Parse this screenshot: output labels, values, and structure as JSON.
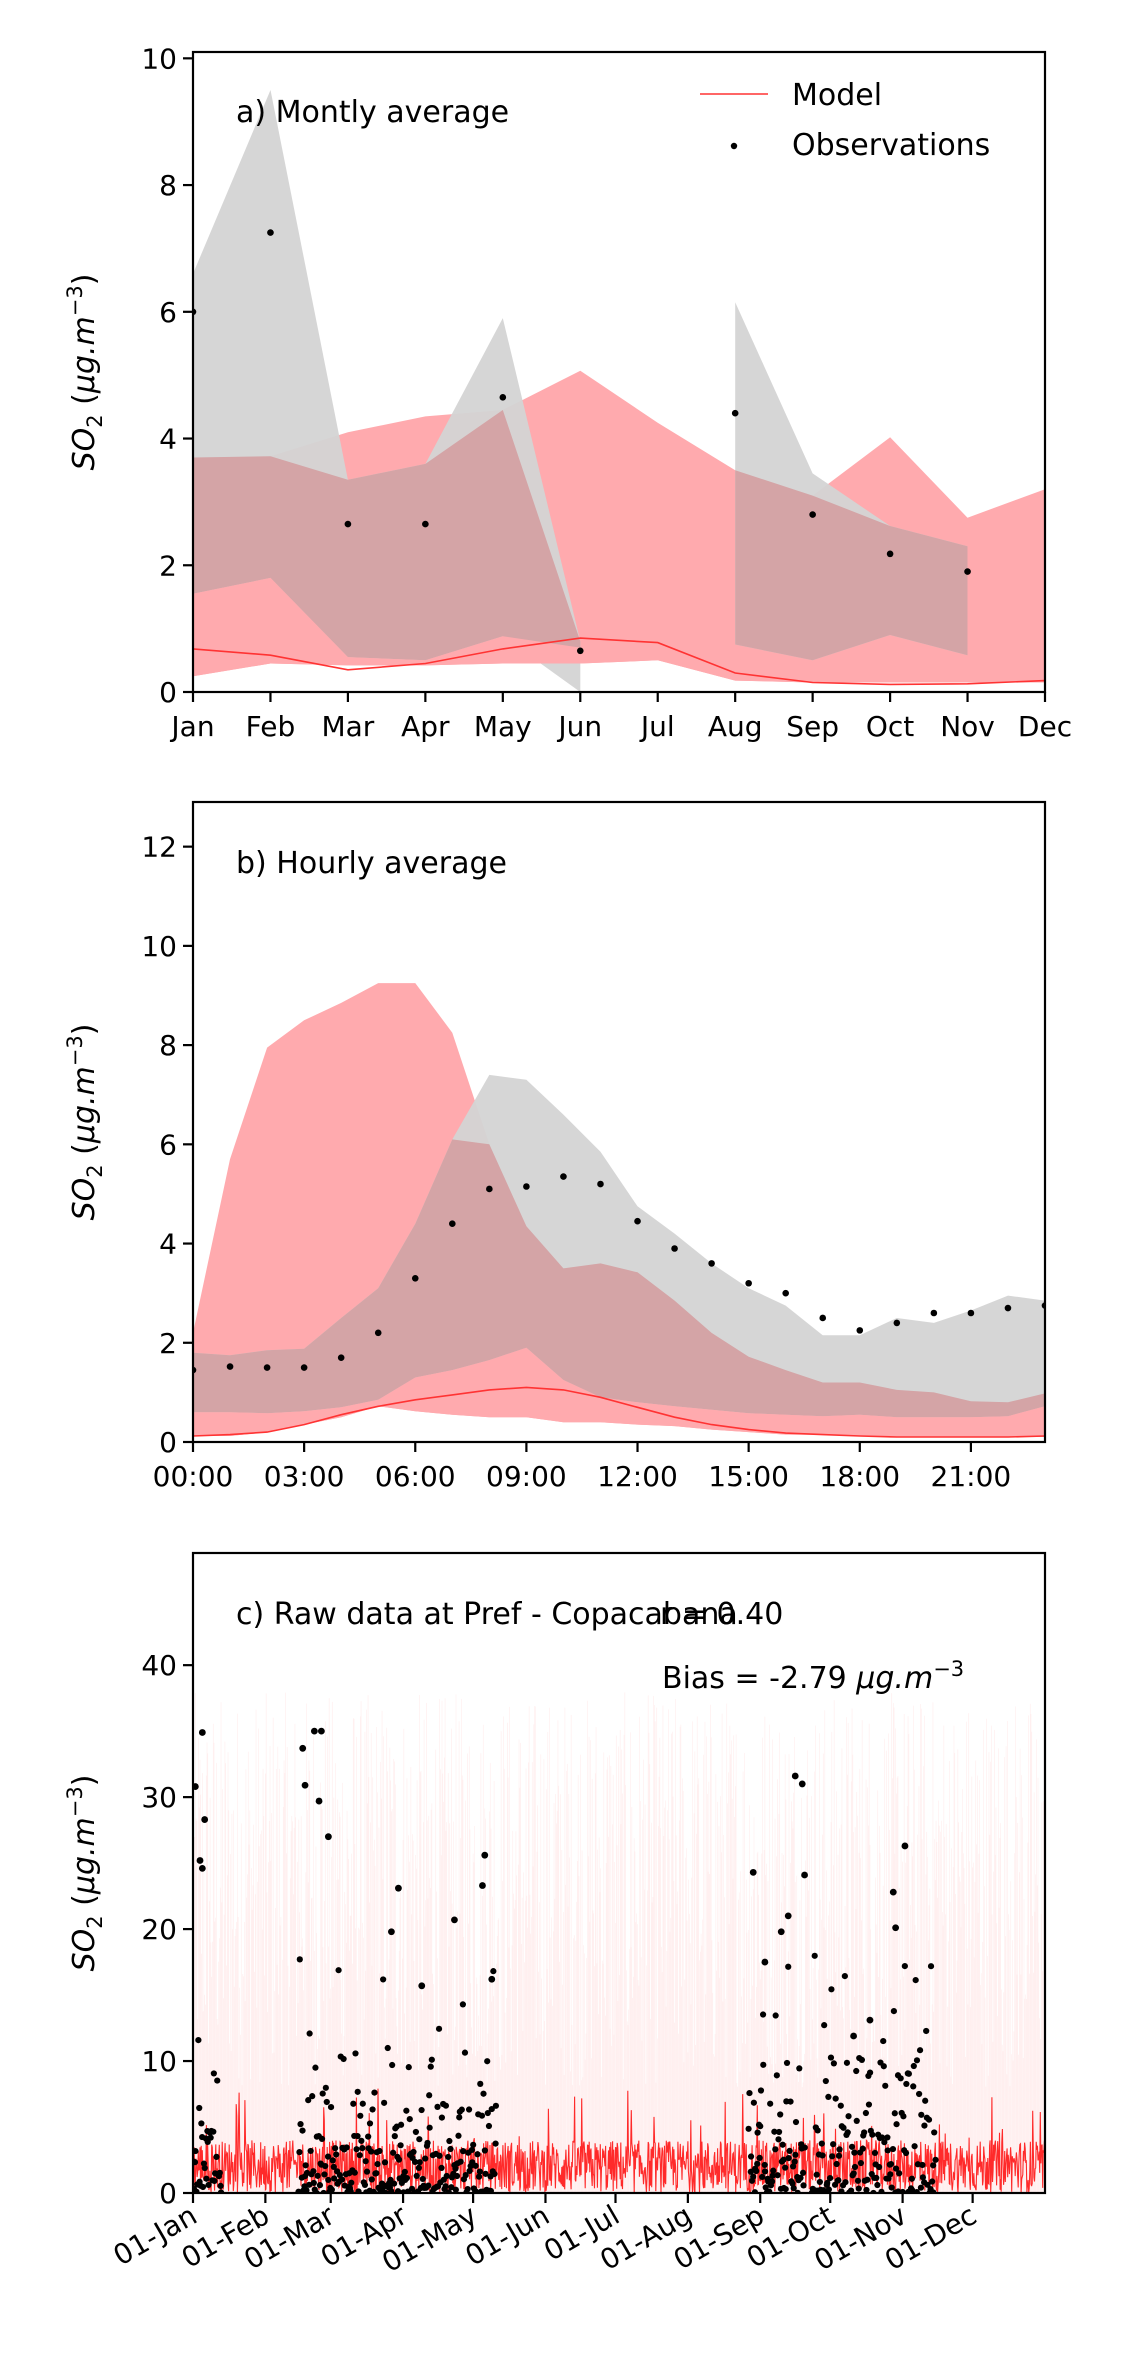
{
  "chart_data": [
    {
      "type": "line",
      "panel_label": "a) Montly average",
      "ylabel": "SO2 (μg.m−3)",
      "ylim": [
        0,
        10.1
      ],
      "yticks": [
        0,
        2,
        4,
        6,
        8,
        10
      ],
      "x_tick_labels": [
        "Jan",
        "Feb",
        "Mar",
        "Apr",
        "May",
        "Jun",
        "Jul",
        "Aug",
        "Sep",
        "Oct",
        "Nov",
        "Dec"
      ],
      "xlim": [
        0,
        11
      ],
      "legend": {
        "position": "top-right",
        "entries": [
          {
            "label": "Model",
            "kind": "line",
            "color": "#ff3333"
          },
          {
            "label": "Observations",
            "kind": "dot",
            "color": "#000000"
          }
        ]
      },
      "model_band_outer": {
        "x": [
          0,
          1,
          2,
          3,
          4,
          5,
          6,
          7,
          8,
          9,
          10,
          11
        ],
        "lower": [
          0.25,
          0.45,
          0.42,
          0.42,
          0.45,
          0.45,
          0.5,
          0.18,
          0.15,
          0.15,
          0.15,
          0.15
        ],
        "upper": [
          3.7,
          3.72,
          4.1,
          4.35,
          4.45,
          5.07,
          4.25,
          3.5,
          3.1,
          4.02,
          2.75,
          3.2
        ]
      },
      "model_band_inner": {
        "x": [
          0,
          1,
          2,
          3,
          4,
          5,
          6,
          7,
          8,
          9,
          10,
          11
        ],
        "lower": [
          0.25,
          0.45,
          0.42,
          0.42,
          0.45,
          0.45,
          0.5,
          0.18,
          0.15,
          0.15,
          0.15,
          0.15
        ],
        "upper": [
          1.55,
          1.8,
          0.55,
          0.5,
          0.88,
          0.7,
          0.65,
          0.35,
          0.25,
          0.25,
          0.25,
          0.35
        ]
      },
      "obs_band_segments": [
        {
          "x": [
            0,
            1,
            2,
            3,
            4,
            5
          ],
          "lower": [
            1.55,
            1.8,
            0.55,
            0.5,
            0.88,
            0.0
          ],
          "upper": [
            6.6,
            9.5,
            3.35,
            3.6,
            5.9,
            0.8
          ]
        },
        {
          "x": [
            7,
            8,
            9,
            10
          ],
          "lower": [
            0.75,
            0.5,
            0.9,
            0.58
          ],
          "upper": [
            6.15,
            3.45,
            2.62,
            2.3
          ]
        }
      ],
      "model_line": {
        "x": [
          0,
          1,
          2,
          3,
          4,
          5,
          6,
          7,
          8,
          9,
          10,
          11
        ],
        "y": [
          0.68,
          0.58,
          0.35,
          0.45,
          0.68,
          0.85,
          0.78,
          0.3,
          0.15,
          0.12,
          0.13,
          0.18
        ]
      },
      "observations": {
        "x": [
          0,
          1,
          2,
          3,
          4,
          5,
          7,
          8,
          9,
          10
        ],
        "y": [
          6.0,
          7.25,
          2.65,
          2.65,
          4.65,
          0.65,
          4.4,
          2.8,
          2.18,
          1.9
        ]
      },
      "colors": {
        "model": "#ff3333",
        "model_band": "#ffaaae",
        "obs_band": "#d4d4d4",
        "overlap": "#d4a4a6"
      }
    },
    {
      "type": "line",
      "panel_label": "b) Hourly average",
      "ylabel": "SO2 (μg.m−3)",
      "ylim": [
        0,
        12.9
      ],
      "yticks": [
        0,
        2,
        4,
        6,
        8,
        10,
        12
      ],
      "x_tick_labels": [
        "00:00",
        "03:00",
        "06:00",
        "09:00",
        "12:00",
        "15:00",
        "18:00",
        "21:00"
      ],
      "x_tick_hours": [
        0,
        3,
        6,
        9,
        12,
        15,
        18,
        21
      ],
      "xlim": [
        0,
        23
      ],
      "model_band_outer": {
        "x": [
          0,
          1,
          2,
          3,
          4,
          5,
          6,
          7,
          8,
          9,
          10,
          11,
          12,
          13,
          14,
          15,
          16,
          17,
          18,
          19,
          20,
          21,
          22,
          23
        ],
        "lower": [
          0.12,
          0.12,
          0.2,
          0.35,
          0.5,
          0.72,
          0.62,
          0.55,
          0.5,
          0.5,
          0.4,
          0.4,
          0.35,
          0.32,
          0.25,
          0.2,
          0.15,
          0.15,
          0.12,
          0.1,
          0.1,
          0.1,
          0.1,
          0.1
        ],
        "upper": [
          2.2,
          5.7,
          7.95,
          8.5,
          8.85,
          9.25,
          9.25,
          8.25,
          6.0,
          4.35,
          3.5,
          3.6,
          3.42,
          2.85,
          2.2,
          1.72,
          1.45,
          1.2,
          1.2,
          1.05,
          1.0,
          0.82,
          0.8,
          0.98
        ]
      },
      "model_band_inner": {
        "x": [
          0,
          1,
          2,
          3,
          4,
          5,
          6,
          7,
          8,
          9,
          10,
          11,
          12,
          13,
          14,
          15,
          16,
          17,
          18,
          19,
          20,
          21,
          22,
          23
        ],
        "lower": [
          0.12,
          0.12,
          0.2,
          0.35,
          0.5,
          0.72,
          0.62,
          0.55,
          0.5,
          0.5,
          0.4,
          0.4,
          0.35,
          0.32,
          0.25,
          0.2,
          0.15,
          0.15,
          0.12,
          0.1,
          0.1,
          0.1,
          0.1,
          0.1
        ],
        "upper": [
          0.6,
          0.6,
          0.58,
          0.62,
          0.7,
          0.85,
          1.3,
          1.45,
          1.65,
          1.9,
          1.25,
          0.9,
          0.8,
          0.72,
          0.65,
          0.58,
          0.55,
          0.52,
          0.55,
          0.5,
          0.5,
          0.5,
          0.52,
          0.72
        ]
      },
      "obs_band": {
        "x": [
          0,
          1,
          2,
          3,
          4,
          5,
          6,
          7,
          8,
          9,
          10,
          11,
          12,
          13,
          14,
          15,
          16,
          17,
          18,
          19,
          20,
          21,
          22,
          23
        ],
        "lower": [
          0.6,
          0.6,
          0.58,
          0.62,
          0.7,
          0.85,
          1.3,
          1.45,
          1.65,
          1.9,
          1.25,
          0.9,
          0.8,
          0.72,
          0.65,
          0.58,
          0.55,
          0.52,
          0.55,
          0.5,
          0.5,
          0.5,
          0.52,
          0.72
        ],
        "upper": [
          1.8,
          1.75,
          1.85,
          1.88,
          2.5,
          3.1,
          4.4,
          6.1,
          7.4,
          7.3,
          6.6,
          5.85,
          4.75,
          4.2,
          3.6,
          3.1,
          2.75,
          2.15,
          2.15,
          2.5,
          2.4,
          2.65,
          2.95,
          2.85
        ]
      },
      "model_line": {
        "x": [
          0,
          1,
          2,
          3,
          4,
          5,
          6,
          7,
          8,
          9,
          10,
          11,
          12,
          13,
          14,
          15,
          16,
          17,
          18,
          19,
          20,
          21,
          22,
          23
        ],
        "y": [
          0.12,
          0.15,
          0.2,
          0.35,
          0.55,
          0.72,
          0.85,
          0.95,
          1.05,
          1.1,
          1.05,
          0.9,
          0.7,
          0.5,
          0.35,
          0.25,
          0.18,
          0.15,
          0.12,
          0.1,
          0.1,
          0.1,
          0.1,
          0.12
        ]
      },
      "observations": {
        "x": [
          0,
          1,
          2,
          3,
          4,
          5,
          6,
          7,
          8,
          9,
          10,
          11,
          12,
          13,
          14,
          15,
          16,
          17,
          18,
          19,
          20,
          21,
          22,
          23
        ],
        "y": [
          1.45,
          1.52,
          1.5,
          1.5,
          1.7,
          2.2,
          3.3,
          4.4,
          5.1,
          5.15,
          5.35,
          5.2,
          4.45,
          3.9,
          3.6,
          3.2,
          3.0,
          2.5,
          2.25,
          2.4,
          2.6,
          2.6,
          2.7,
          2.75
        ]
      },
      "colors": {
        "model": "#ff3333",
        "model_band": "#ffaaae",
        "obs_band": "#d4d4d4",
        "overlap": "#d4a4a6"
      }
    },
    {
      "type": "scatter",
      "panel_label": "c) Raw data at Pref - Copacabana",
      "r_text": "r = 0.40",
      "bias_text_prefix": "Bias = -2.79 ",
      "bias_units_text": "μg.m−3",
      "ylabel": "SO2 (μg.m−3)",
      "ylim": [
        0,
        48.5
      ],
      "yticks": [
        0,
        10,
        20,
        30,
        40
      ],
      "x_tick_labels": [
        "01-Jan",
        "01-Feb",
        "01-Mar",
        "01-Apr",
        "01-May",
        "01-Jun",
        "01-Jul",
        "01-Aug",
        "01-Sep",
        "01-Oct",
        "01-Nov",
        "01-Dec"
      ],
      "x_tick_days": [
        0,
        31,
        59,
        90,
        120,
        151,
        181,
        212,
        243,
        273,
        304,
        334
      ],
      "xlim": [
        0,
        365
      ],
      "observation_periods_days": [
        [
          0,
          12
        ],
        [
          45,
          130
        ],
        [
          238,
          262
        ],
        [
          265,
          318
        ]
      ],
      "observation_peak_points": [
        {
          "day": 1,
          "value": 30.8
        },
        {
          "day": 3,
          "value": 25.2
        },
        {
          "day": 4,
          "value": 34.9
        },
        {
          "day": 4,
          "value": 24.6
        },
        {
          "day": 5,
          "value": 28.3
        },
        {
          "day": 47,
          "value": 33.7
        },
        {
          "day": 48,
          "value": 30.9
        },
        {
          "day": 52,
          "value": 35.0
        },
        {
          "day": 55,
          "value": 35.0
        },
        {
          "day": 58,
          "value": 27.0
        },
        {
          "day": 54,
          "value": 29.7
        },
        {
          "day": 88,
          "value": 23.1
        },
        {
          "day": 98,
          "value": 15.7
        },
        {
          "day": 112,
          "value": 20.7
        },
        {
          "day": 125,
          "value": 25.6
        },
        {
          "day": 124,
          "value": 23.3
        },
        {
          "day": 85,
          "value": 19.8
        },
        {
          "day": 240,
          "value": 24.3
        },
        {
          "day": 245,
          "value": 17.5
        },
        {
          "day": 252,
          "value": 19.8
        },
        {
          "day": 255,
          "value": 21.0
        },
        {
          "day": 258,
          "value": 31.6
        },
        {
          "day": 261,
          "value": 31.0
        },
        {
          "day": 262,
          "value": 24.1
        },
        {
          "day": 300,
          "value": 22.8
        },
        {
          "day": 301,
          "value": 20.1
        },
        {
          "day": 305,
          "value": 26.3
        },
        {
          "day": 283,
          "value": 11.9
        },
        {
          "day": 290,
          "value": 13.1
        },
        {
          "day": 128,
          "value": 16.2
        }
      ],
      "model_series_range": {
        "typical": [
          0,
          4
        ],
        "max": 8
      },
      "colors": {
        "model": "#ff2a2a",
        "model_light": "#ffc8c8",
        "observations": "#000000"
      }
    }
  ]
}
